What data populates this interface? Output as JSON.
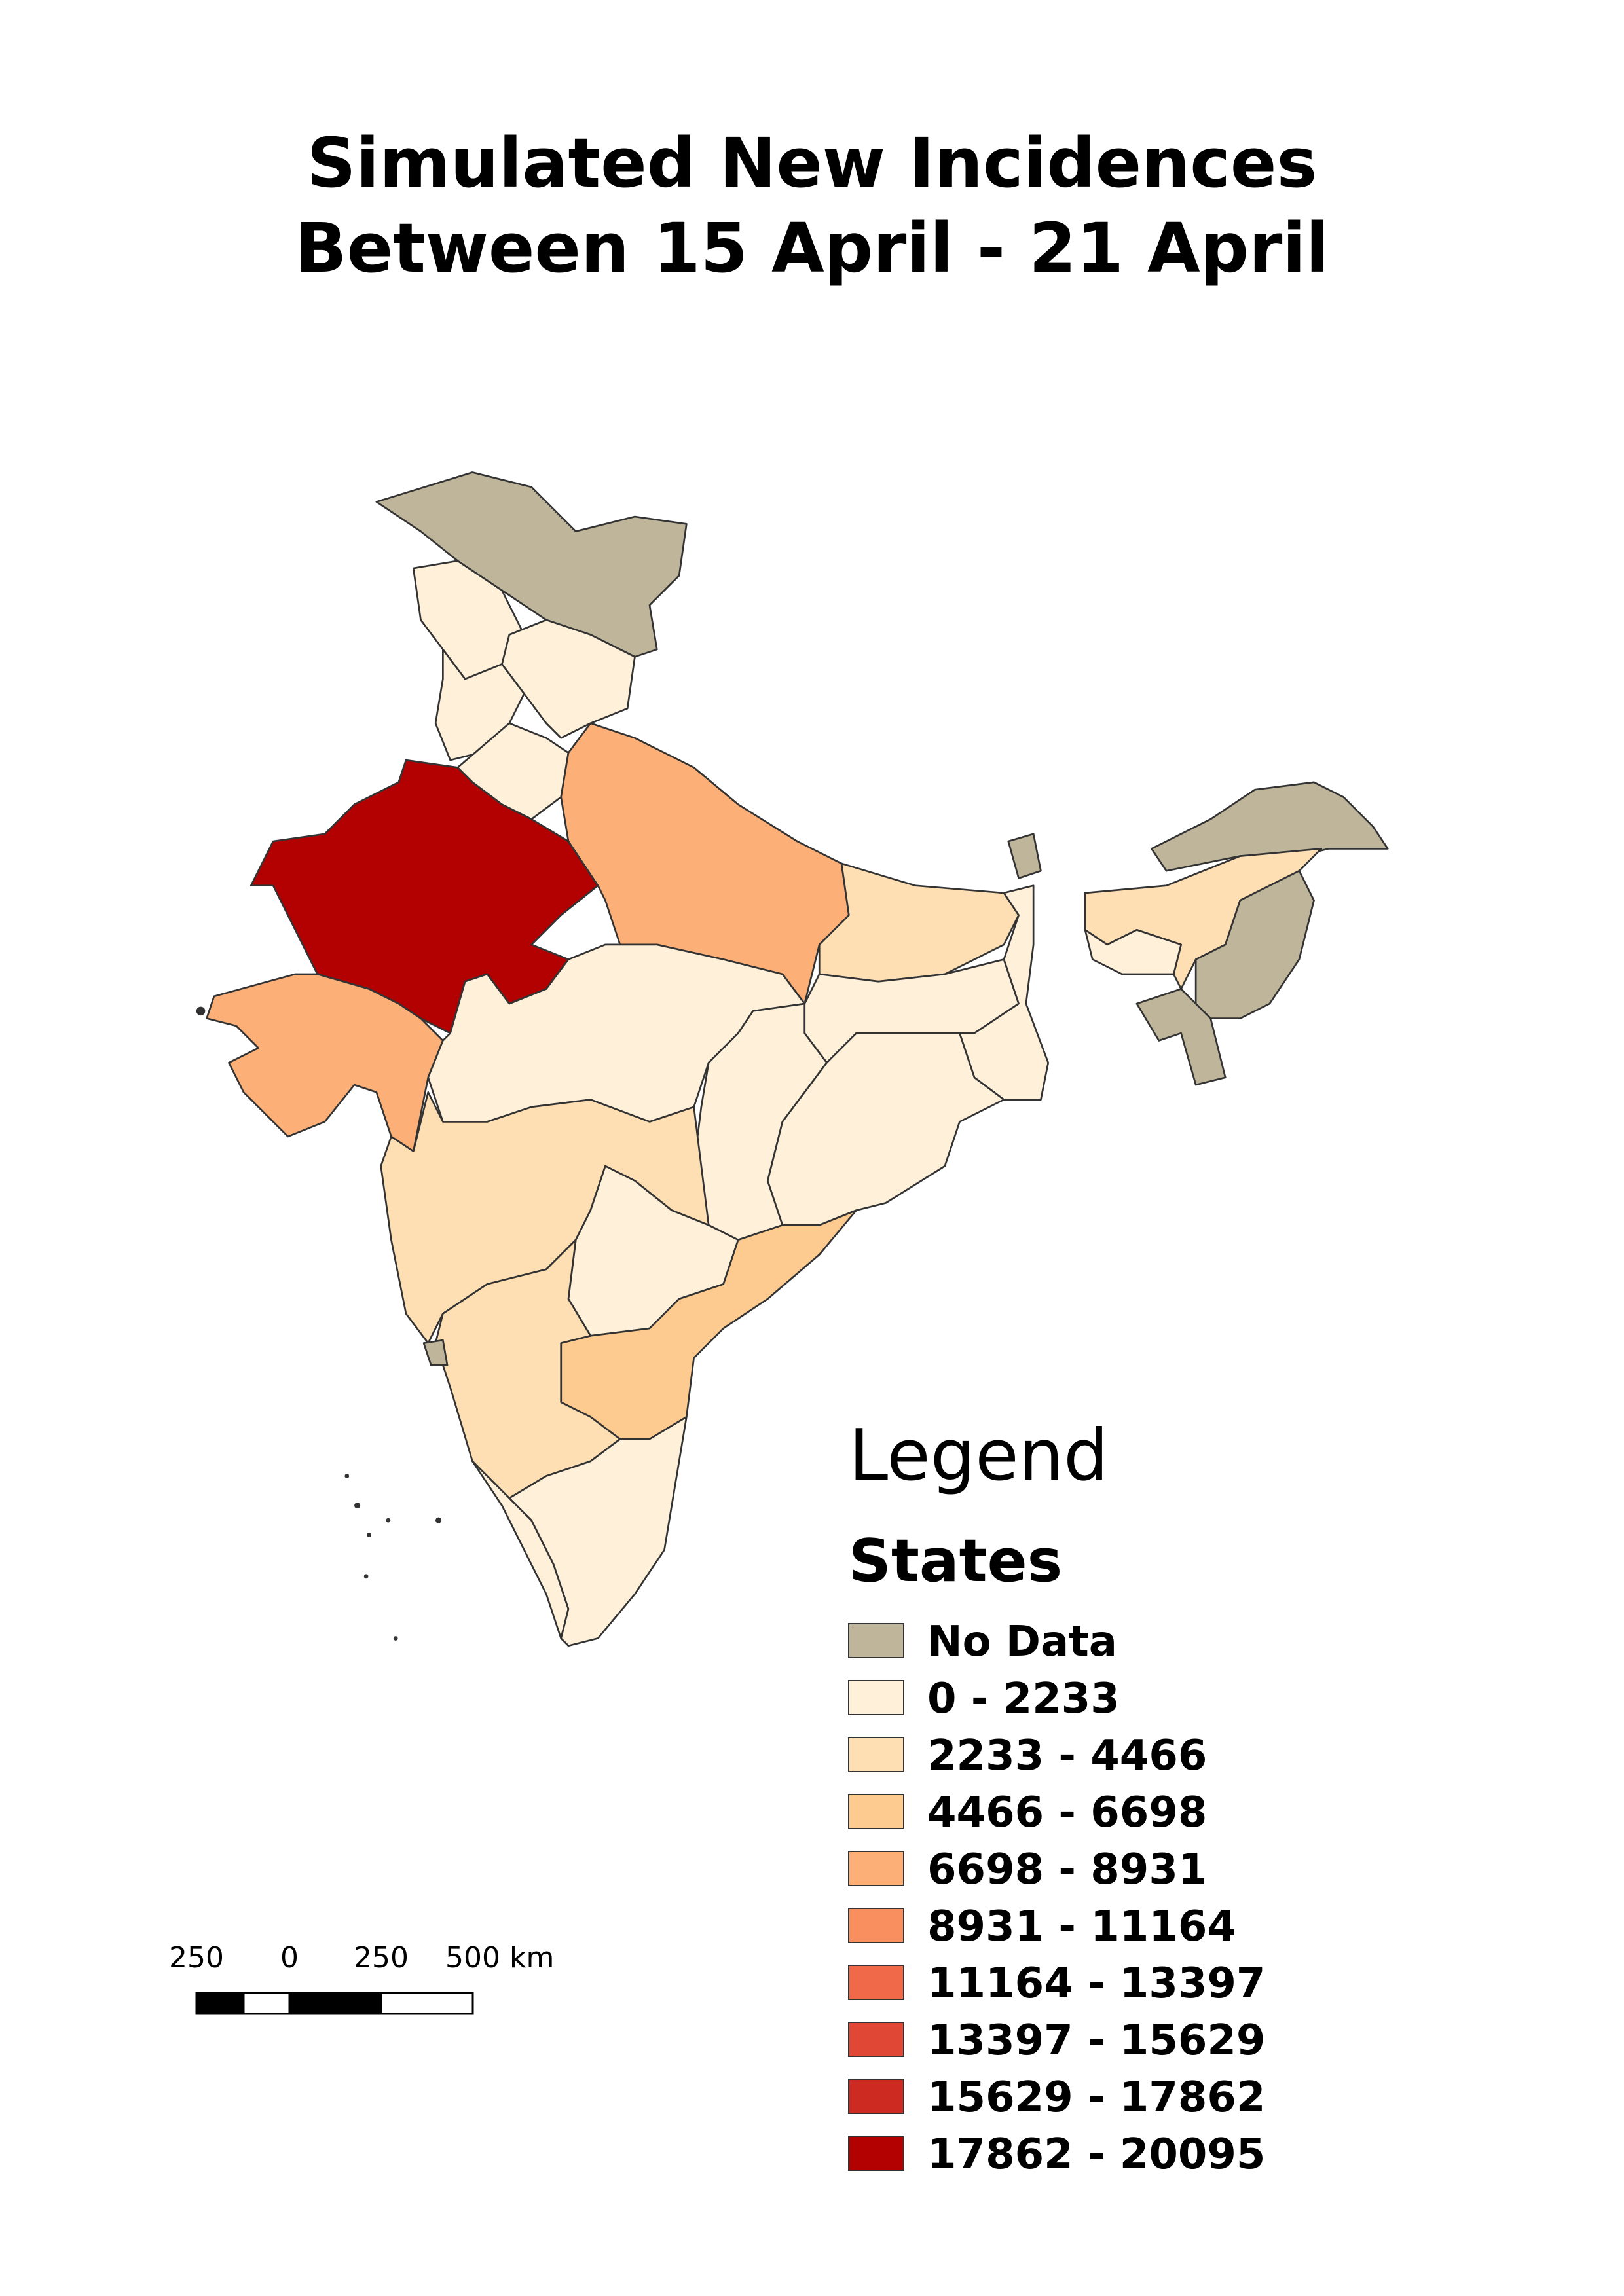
{
  "title": [
    "Simulated New Incidences",
    "Between 15 April - 21 April"
  ],
  "legend": {
    "heading": "Legend",
    "layer": "States",
    "items": [
      {
        "label": "No Data",
        "color": "#bfb59a"
      },
      {
        "label": "0 - 2233",
        "color": "#fef0d9"
      },
      {
        "label": "2233 - 4466",
        "color": "#fddfb3"
      },
      {
        "label": "4466 - 6698",
        "color": "#fdcb8f"
      },
      {
        "label": "6698 - 8931",
        "color": "#fcaf76"
      },
      {
        "label": "8931 - 11164",
        "color": "#f98f5f"
      },
      {
        "label": "11164 - 13397",
        "color": "#f06a49"
      },
      {
        "label": "13397 - 15629",
        "color": "#e14735"
      },
      {
        "label": "15629 - 17862",
        "color": "#cd2a22"
      },
      {
        "label": "17862 - 20095",
        "color": "#b30000"
      }
    ]
  },
  "scale_bar": {
    "labels": [
      "250",
      "0",
      "250",
      "500 km"
    ]
  }
}
